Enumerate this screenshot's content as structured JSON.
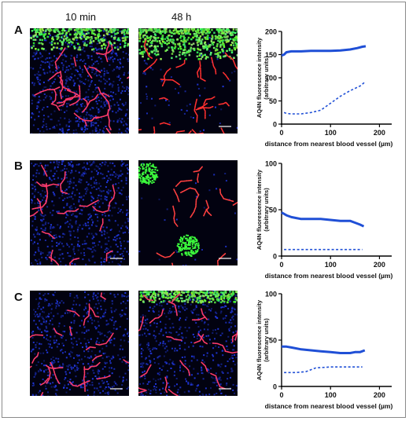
{
  "figure": {
    "column_headers": [
      "10 min",
      "48 h"
    ],
    "panels": [
      {
        "letter": "A"
      },
      {
        "letter": "B"
      },
      {
        "letter": "C"
      }
    ]
  },
  "colors": {
    "series": "#1f4fd6",
    "nucleus_blue": "#1a2a9c",
    "vessel_red": "#ff3b6a",
    "drug_green": "#3dff3d"
  },
  "chart_data": [
    {
      "type": "line",
      "panel": "A",
      "ylabel": "AQ4N fluorescence intensity\n(arbitrary units)",
      "xlabel": "distance from nearest blood vessel (µm)",
      "xlim": [
        0,
        225
      ],
      "ylim": [
        0,
        200
      ],
      "xticks": [
        0,
        100,
        200
      ],
      "yticks": [
        0,
        50,
        100,
        150,
        200
      ],
      "series": [
        {
          "style": "solid",
          "x": [
            0,
            5,
            10,
            20,
            40,
            60,
            80,
            100,
            120,
            140,
            155,
            165,
            172
          ],
          "y": [
            148,
            150,
            155,
            157,
            157,
            158,
            158,
            158,
            159,
            161,
            164,
            167,
            168
          ]
        },
        {
          "style": "dashed",
          "x": [
            5,
            10,
            20,
            40,
            60,
            80,
            100,
            120,
            140,
            160,
            172
          ],
          "y": [
            25,
            23,
            22,
            22,
            25,
            30,
            45,
            60,
            72,
            82,
            92
          ]
        }
      ]
    },
    {
      "type": "line",
      "panel": "B",
      "ylabel": "AQ4N fluorescence intensity\n(arbitrary units)",
      "xlabel": "distance from nearest blood vessel (µm)",
      "xlim": [
        0,
        225
      ],
      "ylim": [
        0,
        100
      ],
      "xticks": [
        0,
        100,
        200
      ],
      "yticks": [
        0,
        50,
        100
      ],
      "series": [
        {
          "style": "solid",
          "x": [
            0,
            10,
            20,
            30,
            40,
            60,
            80,
            100,
            120,
            140,
            150,
            160,
            168
          ],
          "y": [
            47,
            44,
            42,
            41,
            40,
            40,
            40,
            39,
            38,
            38,
            36,
            34,
            32
          ]
        },
        {
          "style": "dashed",
          "x": [
            5,
            40,
            80,
            120,
            165
          ],
          "y": [
            7,
            7,
            7,
            7,
            7
          ]
        }
      ]
    },
    {
      "type": "line",
      "panel": "C",
      "ylabel": "AQ4N fluorescence intensity\n(arbitrary units)",
      "xlabel": "distance from nearest blood vessel (µm)",
      "xlim": [
        0,
        225
      ],
      "ylim": [
        0,
        100
      ],
      "xticks": [
        0,
        100,
        200
      ],
      "yticks": [
        0,
        50,
        100
      ],
      "series": [
        {
          "style": "solid",
          "x": [
            0,
            10,
            20,
            40,
            60,
            80,
            100,
            120,
            140,
            150,
            160,
            170
          ],
          "y": [
            43,
            43,
            42,
            40,
            39,
            38,
            37,
            36,
            36,
            37,
            37,
            39
          ]
        },
        {
          "style": "dashed",
          "x": [
            5,
            30,
            50,
            70,
            100,
            130,
            165
          ],
          "y": [
            15,
            15,
            16,
            20,
            21,
            21,
            21
          ]
        }
      ]
    }
  ]
}
